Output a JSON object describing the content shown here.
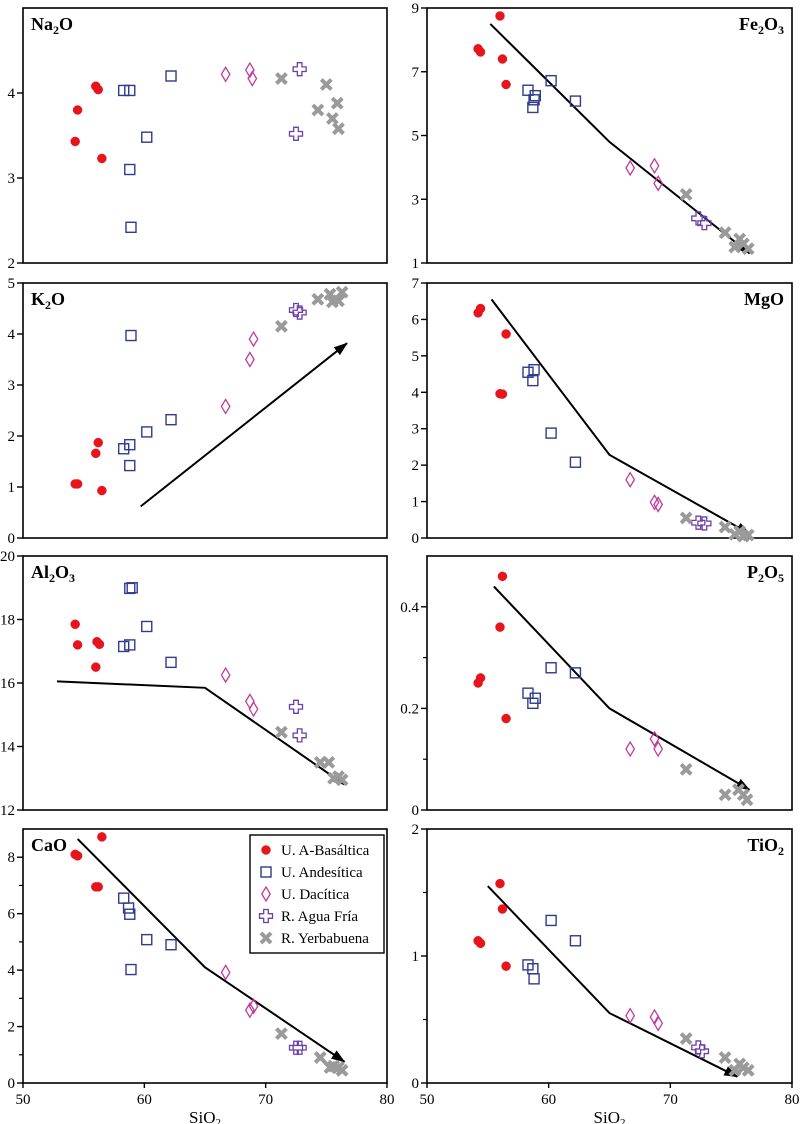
{
  "chart_data": {
    "type": "scatter",
    "xlabel": "SiO2",
    "xlim": [
      50,
      80
    ],
    "x_ticks": [
      "50",
      "60",
      "70",
      "80"
    ],
    "legend": {
      "placement": "top-right of CaO panel",
      "entries": [
        {
          "series_id": "basaltic",
          "label": "U. A-Basáltica"
        },
        {
          "series_id": "andesitic",
          "label": "U. Andesítica"
        },
        {
          "series_id": "dacitic",
          "label": "U. Dacítica"
        },
        {
          "series_id": "aguafria",
          "label": "R. Agua Fría"
        },
        {
          "series_id": "yerbabuena",
          "label": "R. Yerbabuena"
        }
      ]
    },
    "series_style": {
      "basaltic": {
        "marker": "filled-circle",
        "color": "#e8141c"
      },
      "andesitic": {
        "marker": "open-square",
        "color": "#2e3b8f"
      },
      "dacitic": {
        "marker": "open-diamond",
        "color": "#c23a9b"
      },
      "aguafria": {
        "marker": "open-cross",
        "color": "#6a3fa8"
      },
      "yerbabuena": {
        "marker": "x-cross",
        "color": "#9a9a9a"
      }
    },
    "panels": [
      {
        "id": "na2o",
        "label_main": "Na",
        "label_sub": "2",
        "label_tail": "O",
        "label_pos": "left",
        "ylim": [
          2,
          5
        ],
        "y_ticks": [
          2,
          3,
          4
        ],
        "y_tick_labels": [
          "2",
          "3",
          "4"
        ],
        "show_x_ticks": false,
        "trend": [],
        "points": {
          "basaltic": [
            [
              54.3,
              3.43
            ],
            [
              54.5,
              3.8
            ],
            [
              56.0,
              4.08
            ],
            [
              56.2,
              4.04
            ],
            [
              56.5,
              3.23
            ]
          ],
          "andesitic": [
            [
              58.3,
              4.03
            ],
            [
              58.8,
              4.03
            ],
            [
              58.8,
              3.1
            ],
            [
              58.9,
              2.42
            ],
            [
              60.2,
              3.48
            ],
            [
              62.2,
              4.2
            ]
          ],
          "dacitic": [
            [
              66.7,
              4.22
            ],
            [
              68.7,
              4.27
            ],
            [
              68.9,
              4.17
            ]
          ],
          "aguafria": [
            [
              72.5,
              3.52
            ],
            [
              72.8,
              4.28
            ]
          ],
          "yerbabuena": [
            [
              71.3,
              4.17
            ],
            [
              74.3,
              3.8
            ],
            [
              75.0,
              4.1
            ],
            [
              75.5,
              3.7
            ],
            [
              75.9,
              3.88
            ],
            [
              76.0,
              3.58
            ]
          ]
        }
      },
      {
        "id": "fe2o3",
        "label_main": "Fe",
        "label_sub": "2",
        "label_tail": "O",
        "label_sub2": "3",
        "label_pos": "right",
        "ylim": [
          1,
          9
        ],
        "y_ticks": [
          1,
          3,
          5,
          7,
          9
        ],
        "y_tick_labels": [
          "1",
          "3",
          "5",
          "7",
          "9"
        ],
        "show_x_ticks": false,
        "trend": [
          [
            55.2,
            8.5
          ],
          [
            65.0,
            4.8
          ],
          [
            76.5,
            1.3
          ]
        ],
        "points": {
          "basaltic": [
            [
              54.2,
              7.72
            ],
            [
              54.4,
              7.62
            ],
            [
              56.0,
              8.75
            ],
            [
              56.2,
              7.4
            ],
            [
              56.5,
              6.6
            ]
          ],
          "andesitic": [
            [
              58.3,
              6.42
            ],
            [
              58.7,
              5.88
            ],
            [
              58.8,
              6.12
            ],
            [
              58.9,
              6.25
            ],
            [
              60.2,
              6.72
            ],
            [
              62.2,
              6.08
            ]
          ],
          "dacitic": [
            [
              66.7,
              3.98
            ],
            [
              68.7,
              4.05
            ],
            [
              69.0,
              3.5
            ]
          ],
          "aguafria": [
            [
              72.3,
              2.4
            ],
            [
              72.8,
              2.25
            ]
          ],
          "yerbabuena": [
            [
              71.3,
              3.15
            ],
            [
              74.5,
              1.95
            ],
            [
              75.3,
              1.5
            ],
            [
              75.7,
              1.75
            ],
            [
              76.0,
              1.6
            ],
            [
              76.4,
              1.45
            ]
          ]
        }
      },
      {
        "id": "k2o",
        "label_main": "K",
        "label_sub": "2",
        "label_tail": "O",
        "label_pos": "left",
        "ylim": [
          0,
          5
        ],
        "y_ticks": [
          0,
          1,
          2,
          3,
          4,
          5
        ],
        "y_tick_labels": [
          "0",
          "1",
          "2",
          "3",
          "4",
          "5"
        ],
        "show_x_ticks": false,
        "trend": [
          [
            59.7,
            0.62
          ],
          [
            76.7,
            3.82
          ]
        ],
        "points": {
          "basaltic": [
            [
              54.3,
              1.06
            ],
            [
              54.5,
              1.06
            ],
            [
              56.0,
              1.66
            ],
            [
              56.2,
              1.87
            ],
            [
              56.5,
              0.93
            ]
          ],
          "andesitic": [
            [
              58.3,
              1.75
            ],
            [
              58.8,
              1.83
            ],
            [
              58.8,
              1.42
            ],
            [
              58.9,
              3.97
            ],
            [
              60.2,
              2.08
            ],
            [
              62.2,
              2.32
            ]
          ],
          "dacitic": [
            [
              66.7,
              2.58
            ],
            [
              68.7,
              3.5
            ],
            [
              69.0,
              3.9
            ]
          ],
          "aguafria": [
            [
              72.5,
              4.47
            ],
            [
              72.8,
              4.42
            ]
          ],
          "yerbabuena": [
            [
              71.3,
              4.15
            ],
            [
              74.3,
              4.68
            ],
            [
              75.3,
              4.78
            ],
            [
              75.5,
              4.63
            ],
            [
              76.0,
              4.65
            ],
            [
              76.3,
              4.82
            ]
          ]
        }
      },
      {
        "id": "mgo",
        "label_main": "MgO",
        "label_pos": "right",
        "ylim": [
          0,
          7
        ],
        "y_ticks": [
          0,
          1,
          2,
          3,
          4,
          5,
          6,
          7
        ],
        "y_tick_labels": [
          "0",
          "1",
          "2",
          "3",
          "4",
          "5",
          "6",
          "7"
        ],
        "show_x_ticks": false,
        "trend": [
          [
            55.3,
            6.55
          ],
          [
            65.0,
            2.28
          ],
          [
            76.5,
            0.12
          ]
        ],
        "points": {
          "basaltic": [
            [
              54.2,
              6.18
            ],
            [
              54.4,
              6.3
            ],
            [
              56.0,
              3.96
            ],
            [
              56.2,
              3.95
            ],
            [
              56.5,
              5.6
            ]
          ],
          "andesitic": [
            [
              58.3,
              4.55
            ],
            [
              58.7,
              4.32
            ],
            [
              58.8,
              4.62
            ],
            [
              60.2,
              2.88
            ],
            [
              62.2,
              2.08
            ]
          ],
          "dacitic": [
            [
              66.7,
              1.6
            ],
            [
              68.7,
              0.98
            ],
            [
              69.0,
              0.92
            ]
          ],
          "aguafria": [
            [
              72.3,
              0.42
            ],
            [
              72.8,
              0.4
            ]
          ],
          "yerbabuena": [
            [
              71.3,
              0.55
            ],
            [
              74.5,
              0.3
            ],
            [
              75.3,
              0.1
            ],
            [
              75.7,
              0.18
            ],
            [
              76.0,
              0.05
            ],
            [
              76.4,
              0.08
            ]
          ]
        }
      },
      {
        "id": "al2o3",
        "label_main": "Al",
        "label_sub": "2",
        "label_tail": "O",
        "label_sub2": "3",
        "label_pos": "left",
        "ylim": [
          12,
          20
        ],
        "y_ticks": [
          12,
          14,
          16,
          18,
          20
        ],
        "y_tick_labels": [
          "12",
          "14",
          "16",
          "18",
          "20"
        ],
        "show_x_ticks": false,
        "trend": [
          [
            52.8,
            16.05
          ],
          [
            65.0,
            15.85
          ],
          [
            76.5,
            12.8
          ]
        ],
        "points": {
          "basaltic": [
            [
              54.3,
              17.85
            ],
            [
              54.5,
              17.2
            ],
            [
              56.0,
              16.5
            ],
            [
              56.1,
              17.3
            ],
            [
              56.3,
              17.22
            ]
          ],
          "andesitic": [
            [
              58.3,
              17.15
            ],
            [
              58.8,
              17.2
            ],
            [
              58.8,
              18.98
            ],
            [
              59.0,
              19.0
            ],
            [
              60.2,
              17.78
            ],
            [
              62.2,
              16.65
            ]
          ],
          "dacitic": [
            [
              66.7,
              16.25
            ],
            [
              68.7,
              15.42
            ],
            [
              69.0,
              15.18
            ]
          ],
          "aguafria": [
            [
              72.5,
              15.25
            ],
            [
              72.8,
              14.35
            ]
          ],
          "yerbabuena": [
            [
              71.3,
              14.45
            ],
            [
              74.5,
              13.5
            ],
            [
              75.2,
              13.5
            ],
            [
              75.6,
              13.0
            ],
            [
              76.0,
              13.05
            ],
            [
              76.3,
              12.95
            ]
          ]
        }
      },
      {
        "id": "p2o5",
        "label_main": "P",
        "label_sub": "2",
        "label_tail": "O",
        "label_sub2": "5",
        "label_pos": "right",
        "ylim": [
          0,
          0.5
        ],
        "y_ticks": [
          0,
          0.2,
          0.4
        ],
        "y_tick_labels": [
          "0",
          "0.2",
          "0.4"
        ],
        "minor_ticks": [
          0.1,
          0.3
        ],
        "show_x_ticks": false,
        "trend": [
          [
            55.5,
            0.44
          ],
          [
            65.0,
            0.2
          ],
          [
            76.5,
            0.04
          ]
        ],
        "points": {
          "basaltic": [
            [
              54.2,
              0.25
            ],
            [
              54.4,
              0.26
            ],
            [
              56.0,
              0.36
            ],
            [
              56.2,
              0.46
            ],
            [
              56.5,
              0.18
            ]
          ],
          "andesitic": [
            [
              58.3,
              0.23
            ],
            [
              58.7,
              0.21
            ],
            [
              58.9,
              0.22
            ],
            [
              60.2,
              0.28
            ],
            [
              62.2,
              0.27
            ]
          ],
          "dacitic": [
            [
              66.7,
              0.12
            ],
            [
              68.7,
              0.14
            ],
            [
              69.0,
              0.12
            ]
          ],
          "aguafria": [],
          "yerbabuena": [
            [
              71.3,
              0.08
            ],
            [
              74.5,
              0.03
            ],
            [
              75.6,
              0.04
            ],
            [
              76.0,
              0.03
            ],
            [
              76.3,
              0.02
            ]
          ]
        }
      },
      {
        "id": "cao",
        "label_main": "CaO",
        "label_pos": "left",
        "ylim": [
          0,
          9
        ],
        "y_ticks": [
          0,
          2,
          4,
          6,
          8
        ],
        "y_tick_labels": [
          "0",
          "2",
          "4",
          "6",
          "8"
        ],
        "minor_ticks": [
          1,
          3,
          5,
          7
        ],
        "show_x_ticks": true,
        "trend": [
          [
            54.5,
            8.65
          ],
          [
            65.0,
            4.1
          ],
          [
            76.5,
            0.75
          ]
        ],
        "points": {
          "basaltic": [
            [
              54.3,
              8.1
            ],
            [
              54.5,
              8.05
            ],
            [
              56.0,
              6.95
            ],
            [
              56.2,
              6.95
            ],
            [
              56.5,
              8.72
            ]
          ],
          "andesitic": [
            [
              58.3,
              6.55
            ],
            [
              58.7,
              6.2
            ],
            [
              58.8,
              5.98
            ],
            [
              58.9,
              4.02
            ],
            [
              60.2,
              5.08
            ],
            [
              62.2,
              4.9
            ]
          ],
          "dacitic": [
            [
              66.7,
              3.92
            ],
            [
              68.7,
              2.58
            ],
            [
              69.0,
              2.72
            ]
          ],
          "aguafria": [
            [
              72.5,
              1.25
            ],
            [
              72.8,
              1.25
            ]
          ],
          "yerbabuena": [
            [
              71.3,
              1.75
            ],
            [
              74.5,
              0.9
            ],
            [
              75.3,
              0.55
            ],
            [
              75.6,
              0.6
            ],
            [
              76.0,
              0.55
            ],
            [
              76.3,
              0.45
            ]
          ]
        }
      },
      {
        "id": "tio2",
        "label_main": "TiO",
        "label_sub": "2",
        "label_pos": "right",
        "ylim": [
          0,
          2
        ],
        "y_ticks": [
          0,
          1,
          2
        ],
        "y_tick_labels": [
          "0",
          "1",
          "2"
        ],
        "minor_ticks": [
          0.5,
          1.5
        ],
        "show_x_ticks": true,
        "trend": [
          [
            55.0,
            1.55
          ],
          [
            65.0,
            0.55
          ],
          [
            75.5,
            0.05
          ]
        ],
        "points": {
          "basaltic": [
            [
              54.2,
              1.12
            ],
            [
              54.4,
              1.1
            ],
            [
              56.0,
              1.57
            ],
            [
              56.2,
              1.37
            ],
            [
              56.5,
              0.92
            ]
          ],
          "andesitic": [
            [
              58.3,
              0.93
            ],
            [
              58.7,
              0.9
            ],
            [
              58.8,
              0.82
            ],
            [
              60.2,
              1.28
            ],
            [
              62.2,
              1.12
            ]
          ],
          "dacitic": [
            [
              66.7,
              0.53
            ],
            [
              68.7,
              0.52
            ],
            [
              69.0,
              0.47
            ]
          ],
          "aguafria": [
            [
              72.3,
              0.28
            ],
            [
              72.6,
              0.25
            ]
          ],
          "yerbabuena": [
            [
              71.3,
              0.35
            ],
            [
              74.5,
              0.2
            ],
            [
              75.3,
              0.1
            ],
            [
              75.7,
              0.15
            ],
            [
              76.0,
              0.12
            ],
            [
              76.4,
              0.1
            ]
          ]
        }
      }
    ]
  }
}
